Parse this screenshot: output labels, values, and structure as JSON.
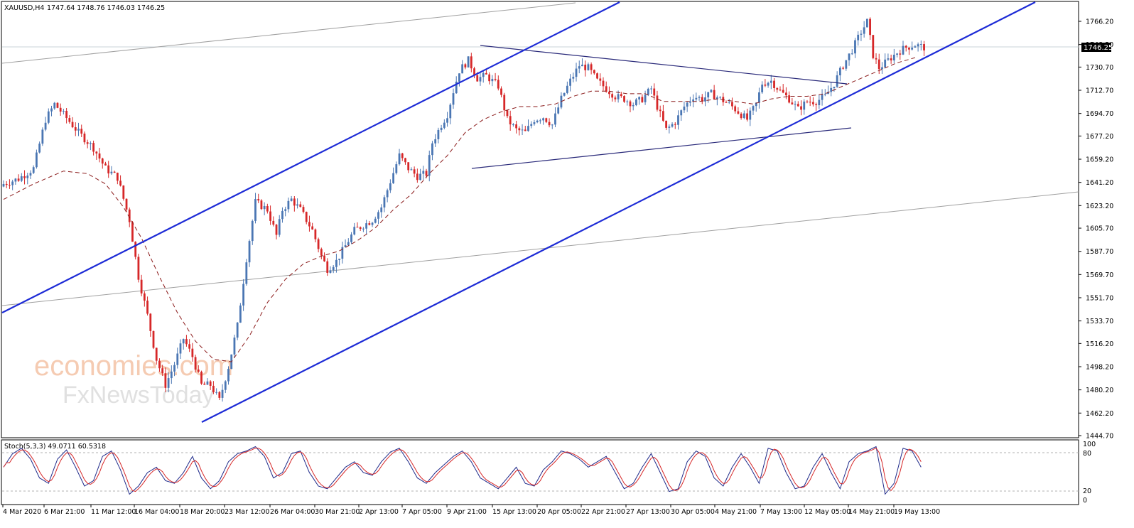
{
  "header": {
    "symbol": "XAUUSD,H4",
    "ohlc": "1747.64 1748.76 1746.03 1746.25"
  },
  "current_price": "1746.25",
  "watermark": {
    "line1": "economies.com",
    "line2": "FxNewsToday"
  },
  "stoch": {
    "label": "Stoch(5,3,3) 49.0711 60.5318",
    "levels": [
      "100",
      "80",
      "20",
      "0"
    ]
  },
  "colors": {
    "bull": "#4a76b3",
    "bear": "#d62728",
    "ma": "#8b1a1a",
    "channel": "#1d2bd6",
    "triangle": "#2a2a7a",
    "thin": "#a0a0a0",
    "stoch_main": "#1f2a8a",
    "stoch_signal": "#d62728",
    "watermark": "#f4c3a5"
  },
  "chart_data": {
    "type": "candlestick",
    "symbol": "XAUUSD",
    "timeframe": "H4",
    "ylim": [
      1444.7,
      1772
    ],
    "yticks": [
      "1766.20",
      "1748.20",
      "1730.70",
      "1712.70",
      "1694.70",
      "1677.20",
      "1659.20",
      "1641.20",
      "1623.20",
      "1605.70",
      "1587.70",
      "1569.70",
      "1551.70",
      "1533.70",
      "1516.20",
      "1498.20",
      "1480.20",
      "1462.20",
      "1444.70"
    ],
    "xticks": [
      "4 Mar 2020",
      "6 Mar 21:00",
      "11 Mar 12:00",
      "16 Mar 04:00",
      "18 Mar 20:00",
      "23 Mar 12:00",
      "26 Mar 04:00",
      "30 Mar 21:00",
      "2 Apr 13:00",
      "7 Apr 05:00",
      "9 Apr 21:00",
      "15 Apr 13:00",
      "20 Apr 05:00",
      "22 Apr 21:00",
      "27 Apr 13:00",
      "30 Apr 05:00",
      "4 May 21:00",
      "7 May 13:00",
      "12 May 05:00",
      "14 May 21:00",
      "19 May 13:00"
    ],
    "price_path": [
      [
        0,
        1640
      ],
      [
        5,
        1644
      ],
      [
        10,
        1652
      ],
      [
        14,
        1690
      ],
      [
        17,
        1702
      ],
      [
        20,
        1694
      ],
      [
        25,
        1680
      ],
      [
        30,
        1668
      ],
      [
        34,
        1652
      ],
      [
        38,
        1645
      ],
      [
        42,
        1612
      ],
      [
        45,
        1568
      ],
      [
        48,
        1538
      ],
      [
        51,
        1504
      ],
      [
        54,
        1484
      ],
      [
        57,
        1500
      ],
      [
        60,
        1520
      ],
      [
        63,
        1506
      ],
      [
        66,
        1484
      ],
      [
        69,
        1484
      ],
      [
        72,
        1472
      ],
      [
        75,
        1498
      ],
      [
        78,
        1530
      ],
      [
        81,
        1582
      ],
      [
        84,
        1626
      ],
      [
        88,
        1620
      ],
      [
        91,
        1600
      ],
      [
        93,
        1620
      ],
      [
        96,
        1628
      ],
      [
        99,
        1620
      ],
      [
        103,
        1604
      ],
      [
        106,
        1584
      ],
      [
        108,
        1574
      ],
      [
        111,
        1580
      ],
      [
        114,
        1592
      ],
      [
        117,
        1604
      ],
      [
        120,
        1608
      ],
      [
        123,
        1612
      ],
      [
        126,
        1622
      ],
      [
        129,
        1642
      ],
      [
        132,
        1662
      ],
      [
        135,
        1652
      ],
      [
        138,
        1646
      ],
      [
        141,
        1648
      ],
      [
        143,
        1672
      ],
      [
        146,
        1686
      ],
      [
        148,
        1694
      ],
      [
        150,
        1712
      ],
      [
        152,
        1728
      ],
      [
        155,
        1736
      ],
      [
        158,
        1722
      ],
      [
        161,
        1724
      ],
      [
        165,
        1716
      ],
      [
        168,
        1690
      ],
      [
        171,
        1682
      ],
      [
        174,
        1680
      ],
      [
        177,
        1690
      ],
      [
        180,
        1692
      ],
      [
        183,
        1686
      ],
      [
        186,
        1706
      ],
      [
        189,
        1720
      ],
      [
        192,
        1732
      ],
      [
        195,
        1730
      ],
      [
        198,
        1720
      ],
      [
        201,
        1714
      ],
      [
        204,
        1708
      ],
      [
        207,
        1706
      ],
      [
        210,
        1702
      ],
      [
        213,
        1706
      ],
      [
        216,
        1714
      ],
      [
        218,
        1700
      ],
      [
        221,
        1682
      ],
      [
        224,
        1688
      ],
      [
        227,
        1700
      ],
      [
        230,
        1708
      ],
      [
        233,
        1706
      ],
      [
        236,
        1710
      ],
      [
        239,
        1706
      ],
      [
        242,
        1702
      ],
      [
        245,
        1696
      ],
      [
        248,
        1690
      ],
      [
        251,
        1702
      ],
      [
        253,
        1718
      ],
      [
        256,
        1720
      ],
      [
        259,
        1712
      ],
      [
        262,
        1706
      ],
      [
        265,
        1698
      ],
      [
        268,
        1704
      ],
      [
        271,
        1704
      ],
      [
        274,
        1708
      ],
      [
        277,
        1718
      ],
      [
        280,
        1732
      ],
      [
        283,
        1744
      ],
      [
        286,
        1758
      ],
      [
        288,
        1766
      ],
      [
        290,
        1740
      ],
      [
        292,
        1730
      ],
      [
        295,
        1736
      ],
      [
        298,
        1742
      ],
      [
        301,
        1746
      ],
      [
        304,
        1748
      ],
      [
        307,
        1746
      ]
    ],
    "ma_path": [
      [
        0,
        1628
      ],
      [
        10,
        1640
      ],
      [
        20,
        1650
      ],
      [
        28,
        1648
      ],
      [
        34,
        1640
      ],
      [
        40,
        1622
      ],
      [
        46,
        1598
      ],
      [
        52,
        1568
      ],
      [
        58,
        1540
      ],
      [
        64,
        1518
      ],
      [
        70,
        1504
      ],
      [
        76,
        1502
      ],
      [
        82,
        1522
      ],
      [
        88,
        1548
      ],
      [
        94,
        1566
      ],
      [
        100,
        1578
      ],
      [
        106,
        1584
      ],
      [
        112,
        1588
      ],
      [
        118,
        1596
      ],
      [
        124,
        1606
      ],
      [
        130,
        1620
      ],
      [
        136,
        1632
      ],
      [
        142,
        1648
      ],
      [
        148,
        1662
      ],
      [
        154,
        1680
      ],
      [
        160,
        1690
      ],
      [
        166,
        1696
      ],
      [
        172,
        1700
      ],
      [
        178,
        1700
      ],
      [
        184,
        1702
      ],
      [
        190,
        1708
      ],
      [
        196,
        1712
      ],
      [
        202,
        1712
      ],
      [
        208,
        1710
      ],
      [
        214,
        1710
      ],
      [
        220,
        1704
      ],
      [
        226,
        1704
      ],
      [
        232,
        1704
      ],
      [
        238,
        1706
      ],
      [
        244,
        1704
      ],
      [
        250,
        1702
      ],
      [
        256,
        1706
      ],
      [
        262,
        1708
      ],
      [
        268,
        1708
      ],
      [
        274,
        1710
      ],
      [
        280,
        1716
      ],
      [
        286,
        1722
      ],
      [
        292,
        1728
      ],
      [
        298,
        1734
      ],
      [
        304,
        1738
      ]
    ],
    "stoch_path": [
      [
        0,
        60
      ],
      [
        3,
        85
      ],
      [
        6,
        95
      ],
      [
        9,
        75
      ],
      [
        12,
        40
      ],
      [
        15,
        30
      ],
      [
        18,
        75
      ],
      [
        21,
        92
      ],
      [
        24,
        60
      ],
      [
        27,
        25
      ],
      [
        30,
        35
      ],
      [
        33,
        80
      ],
      [
        36,
        90
      ],
      [
        39,
        55
      ],
      [
        42,
        10
      ],
      [
        45,
        25
      ],
      [
        48,
        50
      ],
      [
        51,
        60
      ],
      [
        54,
        35
      ],
      [
        57,
        30
      ],
      [
        60,
        50
      ],
      [
        63,
        80
      ],
      [
        66,
        40
      ],
      [
        69,
        20
      ],
      [
        72,
        35
      ],
      [
        75,
        70
      ],
      [
        78,
        85
      ],
      [
        81,
        90
      ],
      [
        84,
        98
      ],
      [
        87,
        80
      ],
      [
        90,
        40
      ],
      [
        93,
        50
      ],
      [
        96,
        85
      ],
      [
        99,
        90
      ],
      [
        102,
        50
      ],
      [
        105,
        25
      ],
      [
        108,
        20
      ],
      [
        111,
        40
      ],
      [
        114,
        60
      ],
      [
        117,
        70
      ],
      [
        120,
        50
      ],
      [
        123,
        45
      ],
      [
        126,
        70
      ],
      [
        129,
        88
      ],
      [
        132,
        95
      ],
      [
        135,
        70
      ],
      [
        138,
        40
      ],
      [
        141,
        30
      ],
      [
        144,
        50
      ],
      [
        147,
        65
      ],
      [
        150,
        80
      ],
      [
        153,
        90
      ],
      [
        156,
        70
      ],
      [
        159,
        40
      ],
      [
        162,
        30
      ],
      [
        165,
        20
      ],
      [
        168,
        40
      ],
      [
        171,
        60
      ],
      [
        174,
        30
      ],
      [
        177,
        25
      ],
      [
        180,
        55
      ],
      [
        183,
        70
      ],
      [
        186,
        90
      ],
      [
        189,
        85
      ],
      [
        192,
        75
      ],
      [
        195,
        60
      ],
      [
        198,
        70
      ],
      [
        201,
        80
      ],
      [
        204,
        50
      ],
      [
        207,
        20
      ],
      [
        210,
        30
      ],
      [
        213,
        60
      ],
      [
        216,
        85
      ],
      [
        219,
        50
      ],
      [
        222,
        15
      ],
      [
        225,
        20
      ],
      [
        228,
        70
      ],
      [
        231,
        90
      ],
      [
        234,
        80
      ],
      [
        237,
        40
      ],
      [
        240,
        25
      ],
      [
        243,
        60
      ],
      [
        246,
        85
      ],
      [
        249,
        60
      ],
      [
        252,
        30
      ],
      [
        255,
        95
      ],
      [
        258,
        90
      ],
      [
        261,
        50
      ],
      [
        264,
        20
      ],
      [
        267,
        25
      ],
      [
        270,
        60
      ],
      [
        273,
        85
      ],
      [
        276,
        50
      ],
      [
        279,
        20
      ],
      [
        282,
        70
      ],
      [
        285,
        85
      ],
      [
        288,
        90
      ],
      [
        291,
        98
      ],
      [
        294,
        10
      ],
      [
        297,
        30
      ],
      [
        300,
        95
      ],
      [
        303,
        90
      ],
      [
        306,
        60
      ]
    ]
  }
}
